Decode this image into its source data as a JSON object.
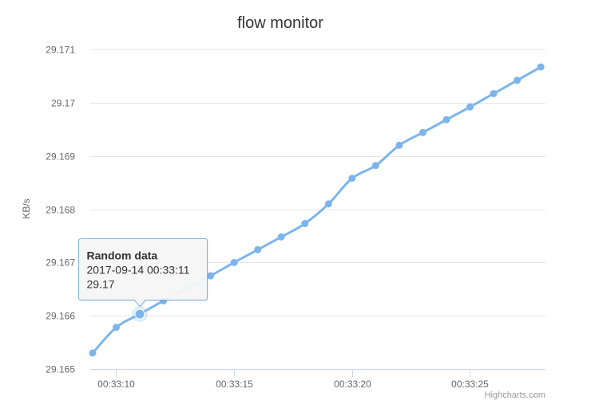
{
  "chart_data": {
    "type": "line",
    "title": "flow monitor",
    "xlabel": "",
    "ylabel": "KB/s",
    "ylim": [
      29.165,
      29.171
    ],
    "yticks": [
      "29.165",
      "29.166",
      "29.167",
      "29.168",
      "29.169",
      "29.17",
      "29.171"
    ],
    "xlim_seconds_of_00_33": [
      8.9,
      28.2
    ],
    "xticks": [
      {
        "label": "00:33:10",
        "t": 10
      },
      {
        "label": "00:33:15",
        "t": 15
      },
      {
        "label": "00:33:20",
        "t": 20
      },
      {
        "label": "00:33:25",
        "t": 25
      }
    ],
    "grid": true,
    "legend": "none",
    "series": [
      {
        "name": "Random data",
        "color": "#7cb5ec",
        "x": [
          "00:33:09",
          "00:33:10",
          "00:33:11",
          "00:33:12",
          "00:33:13",
          "00:33:14",
          "00:33:15",
          "00:33:16",
          "00:33:17",
          "00:33:18",
          "00:33:19",
          "00:33:20",
          "00:33:21",
          "00:33:22",
          "00:33:23",
          "00:33:24",
          "00:33:25",
          "00:33:26",
          "00:33:27",
          "00:33:28"
        ],
        "values": [
          29.1653,
          29.16578,
          29.16603,
          29.16628,
          29.16652,
          29.16675,
          29.167,
          29.16724,
          29.16748,
          29.16773,
          29.1681,
          29.16858,
          29.16882,
          29.1692,
          29.16944,
          29.16968,
          29.16992,
          29.17017,
          29.17042,
          29.17067
        ]
      }
    ],
    "tooltip": {
      "series_name": "Random data",
      "timestamp": "2017-09-14 00:33:11",
      "value": "29.17",
      "point_index": 2
    },
    "credits": "Highcharts.com"
  }
}
